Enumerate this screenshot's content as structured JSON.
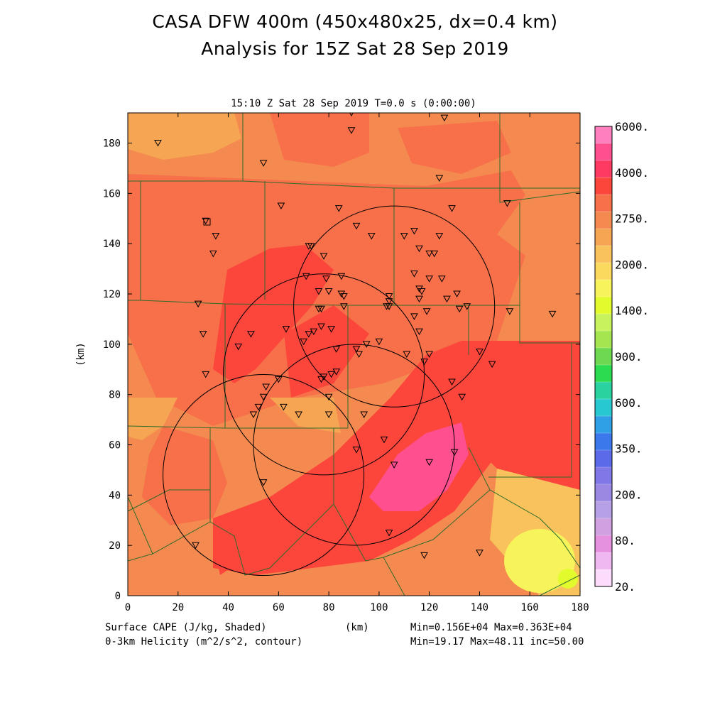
{
  "header": {
    "title_line1": "CASA DFW 400m (450x480x25, dx=0.4 km)",
    "title_line2": "Analysis for 15Z Sat 28 Sep 2019"
  },
  "plot": {
    "time_label": "15:10 Z Sat 28 Sep 2019    T=0.0 s (0:00:00)",
    "x_axis": {
      "label": "(km)",
      "range": [
        0,
        180
      ],
      "ticks": [
        0,
        20,
        40,
        60,
        80,
        100,
        120,
        140,
        160,
        180
      ]
    },
    "y_axis": {
      "label": "(km)",
      "range": [
        0,
        192
      ],
      "ticks": [
        0,
        20,
        40,
        60,
        80,
        100,
        120,
        140,
        160,
        180
      ]
    }
  },
  "colorbar": {
    "labels": [
      "6000.",
      "4000.",
      "2750.",
      "2000.",
      "1400.",
      "900.",
      "600.",
      "350.",
      "200.",
      "80.",
      "20."
    ],
    "colors": [
      "#ff7fbf",
      "#ff4f8f",
      "#fe3a62",
      "#fc463c",
      "#f7704a",
      "#f58a50",
      "#f6a552",
      "#f9c25c",
      "#fbd85e",
      "#f6f45a",
      "#e2fb2c",
      "#c8f35c",
      "#a5e650",
      "#6ed850",
      "#2cdc50",
      "#2ad2a0",
      "#28c8d0",
      "#30a0e6",
      "#3a78ec",
      "#5a6ae8",
      "#7f78e6",
      "#9a88e2",
      "#b6a0e6",
      "#d0a0e0",
      "#e690e0",
      "#f0b8f0",
      "#fcdcfc"
    ]
  },
  "footer": {
    "left1": "Surface CAPE (J/kg, Shaded)",
    "left2": "0-3km Helicity (m^2/s^2, contour)",
    "center": "(km)",
    "right1": "Min=0.156E+04 Max=0.363E+04",
    "right2": "Min=19.17 Max=48.11 inc=50.00"
  },
  "map": {
    "helicity_rings": [
      {
        "cx_km": 106,
        "cy_km": 115,
        "r_km": 40
      },
      {
        "cx_km": 78,
        "cy_km": 88,
        "r_km": 40
      },
      {
        "cx_km": 90,
        "cy_km": 60,
        "r_km": 40
      },
      {
        "cx_km": 54,
        "cy_km": 48,
        "r_km": 40
      }
    ],
    "stations": [
      [
        12,
        180
      ],
      [
        89,
        192
      ],
      [
        126,
        190
      ],
      [
        89,
        185
      ],
      [
        54,
        172
      ],
      [
        124,
        166
      ],
      [
        61,
        155
      ],
      [
        84,
        154
      ],
      [
        129,
        154
      ],
      [
        151,
        156
      ],
      [
        31,
        149
      ],
      [
        35,
        143
      ],
      [
        91,
        147
      ],
      [
        114,
        145
      ],
      [
        110,
        143
      ],
      [
        97,
        143
      ],
      [
        124,
        143
      ],
      [
        72,
        139
      ],
      [
        73,
        139
      ],
      [
        78,
        135
      ],
      [
        34,
        136
      ],
      [
        116,
        138
      ],
      [
        120,
        136
      ],
      [
        122,
        136
      ],
      [
        71,
        127
      ],
      [
        85,
        127
      ],
      [
        114,
        128
      ],
      [
        120,
        126
      ],
      [
        125,
        126
      ],
      [
        79,
        126
      ],
      [
        116,
        122
      ],
      [
        117,
        121
      ],
      [
        85,
        120
      ],
      [
        76,
        121
      ],
      [
        80,
        121
      ],
      [
        86,
        119
      ],
      [
        104,
        119
      ],
      [
        131,
        120
      ],
      [
        127,
        118
      ],
      [
        116,
        118
      ],
      [
        104,
        117
      ],
      [
        104,
        115
      ],
      [
        28,
        116
      ],
      [
        86,
        115
      ],
      [
        76,
        114
      ],
      [
        77,
        114
      ],
      [
        103,
        115
      ],
      [
        114,
        111
      ],
      [
        135,
        115
      ],
      [
        132,
        114
      ],
      [
        152,
        113
      ],
      [
        169,
        112
      ],
      [
        119,
        113
      ],
      [
        77,
        107
      ],
      [
        81,
        106
      ],
      [
        74,
        105
      ],
      [
        72,
        104
      ],
      [
        70,
        101
      ],
      [
        100,
        101
      ],
      [
        63,
        106
      ],
      [
        30,
        104
      ],
      [
        116,
        105
      ],
      [
        49,
        104
      ],
      [
        95,
        100
      ],
      [
        44,
        99
      ],
      [
        91,
        98
      ],
      [
        92,
        96
      ],
      [
        83,
        98
      ],
      [
        111,
        96
      ],
      [
        120,
        96
      ],
      [
        140,
        97
      ],
      [
        118,
        93
      ],
      [
        145,
        92
      ],
      [
        31,
        88
      ],
      [
        83,
        89
      ],
      [
        81,
        88
      ],
      [
        78,
        87
      ],
      [
        77,
        86
      ],
      [
        60,
        86
      ],
      [
        129,
        85
      ],
      [
        55,
        83
      ],
      [
        54,
        79
      ],
      [
        133,
        79
      ],
      [
        80,
        79
      ],
      [
        52,
        75
      ],
      [
        62,
        75
      ],
      [
        50,
        72
      ],
      [
        68,
        72
      ],
      [
        80,
        72
      ],
      [
        94,
        72
      ],
      [
        102,
        62
      ],
      [
        91,
        58
      ],
      [
        130,
        57
      ],
      [
        120,
        53
      ],
      [
        106,
        52
      ],
      [
        54,
        45
      ],
      [
        27,
        20
      ],
      [
        104,
        25
      ],
      [
        118,
        16
      ],
      [
        140,
        17
      ]
    ]
  }
}
